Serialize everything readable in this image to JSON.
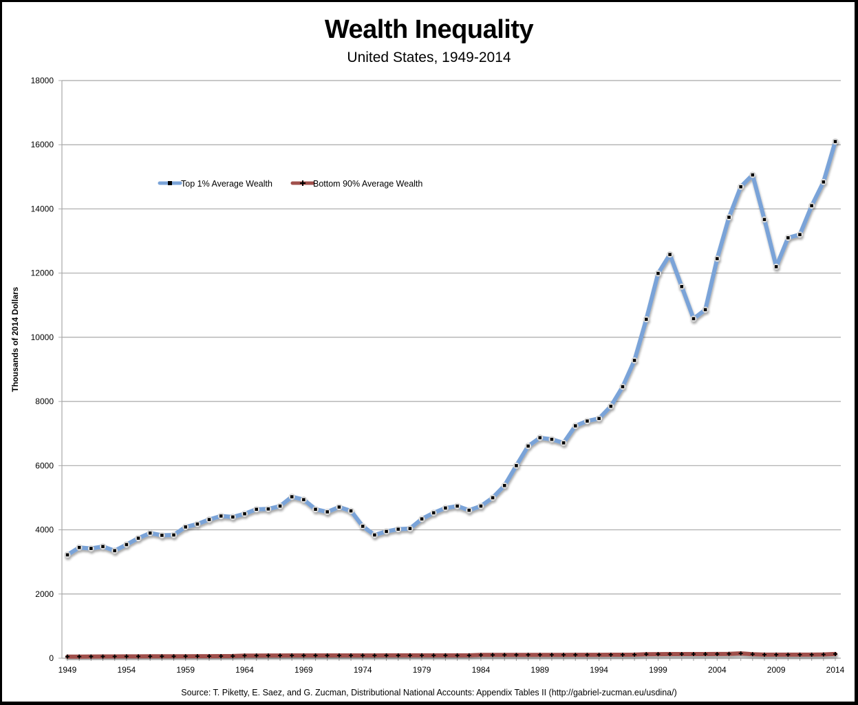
{
  "chart_data": {
    "type": "line",
    "title": "Wealth Inequality",
    "subtitle": "United States, 1949-2014",
    "xlabel": "",
    "ylabel": "Thousands of 2014 Dollars",
    "ylim": [
      0,
      18000
    ],
    "yticks": [
      0,
      2000,
      4000,
      6000,
      8000,
      10000,
      12000,
      14000,
      16000,
      18000
    ],
    "xticks": [
      1949,
      1954,
      1959,
      1964,
      1969,
      1974,
      1979,
      1984,
      1989,
      1994,
      1999,
      2004,
      2009,
      2014
    ],
    "grid": "horizontal",
    "legend_position": "upper-left inside",
    "x": [
      1949,
      1950,
      1951,
      1952,
      1953,
      1954,
      1955,
      1956,
      1957,
      1958,
      1959,
      1960,
      1961,
      1962,
      1963,
      1964,
      1965,
      1966,
      1967,
      1968,
      1969,
      1970,
      1971,
      1972,
      1973,
      1974,
      1975,
      1976,
      1977,
      1978,
      1979,
      1980,
      1981,
      1982,
      1983,
      1984,
      1985,
      1986,
      1987,
      1988,
      1989,
      1990,
      1991,
      1992,
      1993,
      1994,
      1995,
      1996,
      1997,
      1998,
      1999,
      2000,
      2001,
      2002,
      2003,
      2004,
      2005,
      2006,
      2007,
      2008,
      2009,
      2010,
      2011,
      2012,
      2013,
      2014
    ],
    "series": [
      {
        "name": "Top 1% Average Wealth",
        "color": "#7aa3d8",
        "values": [
          3220,
          3450,
          3420,
          3480,
          3350,
          3540,
          3740,
          3900,
          3830,
          3840,
          4090,
          4180,
          4320,
          4430,
          4400,
          4500,
          4640,
          4650,
          4740,
          5030,
          4940,
          4640,
          4560,
          4710,
          4590,
          4110,
          3840,
          3950,
          4020,
          4040,
          4340,
          4530,
          4680,
          4740,
          4610,
          4740,
          5000,
          5380,
          6000,
          6610,
          6870,
          6820,
          6710,
          7240,
          7390,
          7470,
          7850,
          8460,
          9280,
          10560,
          11990,
          12580,
          11580,
          10580,
          10860,
          12450,
          13740,
          14690,
          15060,
          13670,
          12200,
          13100,
          13200,
          14100,
          14840,
          16100
        ]
      },
      {
        "name": "Bottom 90% Average Wealth",
        "color": "#a0504c",
        "values": [
          50,
          50,
          52,
          53,
          53,
          55,
          56,
          57,
          58,
          58,
          60,
          62,
          63,
          65,
          66,
          80,
          82,
          83,
          84,
          85,
          85,
          85,
          86,
          86,
          86,
          86,
          86,
          87,
          87,
          88,
          88,
          88,
          89,
          89,
          89,
          100,
          101,
          102,
          103,
          104,
          104,
          104,
          104,
          105,
          105,
          106,
          107,
          108,
          110,
          125,
          127,
          128,
          128,
          128,
          129,
          130,
          135,
          150,
          125,
          110,
          110,
          110,
          110,
          110,
          115,
          130
        ]
      }
    ]
  },
  "header": {
    "title": "Wealth Inequality",
    "subtitle": "United States, 1949-2014"
  },
  "axis": {
    "ylabel": "Thousands of 2014 Dollars"
  },
  "legend": {
    "items": [
      {
        "label": "Top 1% Average Wealth"
      },
      {
        "label": "Bottom 90% Average Wealth"
      }
    ]
  },
  "footer": {
    "source": "Source: T. Piketty, E. Saez, and G. Zucman, Distributional National Accounts: Appendix Tables II (http://gabriel-zucman.eu/usdina/)"
  }
}
